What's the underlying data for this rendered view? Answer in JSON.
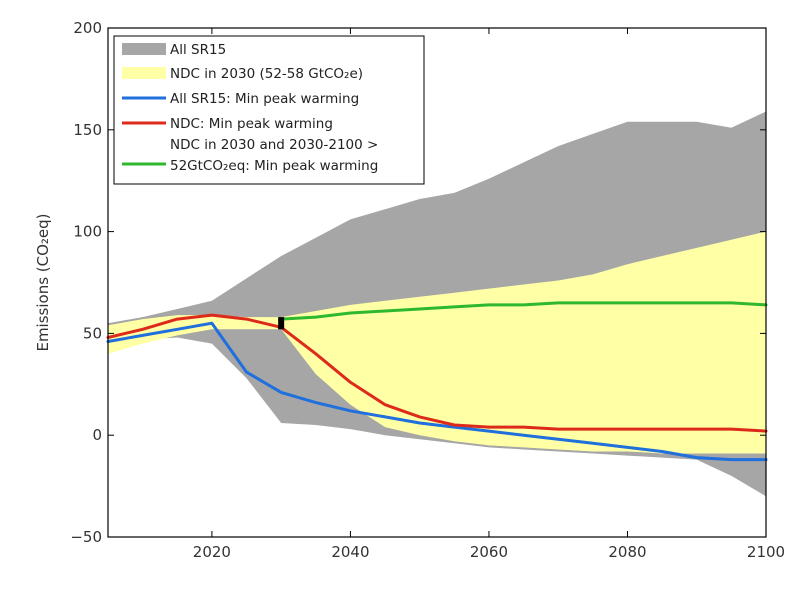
{
  "chart_data": {
    "type": "area",
    "title": "",
    "xlabel": "",
    "ylabel": "Emissions (CO₂eq)",
    "xlim": [
      2005,
      2100
    ],
    "ylim": [
      -50,
      200
    ],
    "xticks": [
      2020,
      2040,
      2060,
      2080,
      2100
    ],
    "yticks": [
      -50,
      0,
      50,
      100,
      150,
      200
    ],
    "xtick_labels": [
      "2020",
      "2040",
      "2060",
      "2080",
      "2100"
    ],
    "ytick_labels": [
      "−50",
      "0",
      "50",
      "100",
      "150",
      "200"
    ],
    "grid": false,
    "legend_position": "top-left",
    "bands": [
      {
        "name": "All SR15",
        "legend_label": "All SR15",
        "color": "#a6a6a6",
        "x": [
          2005,
          2010,
          2015,
          2020,
          2025,
          2030,
          2035,
          2040,
          2045,
          2050,
          2055,
          2060,
          2065,
          2070,
          2075,
          2080,
          2085,
          2090,
          2095,
          2100
        ],
        "upper": [
          55,
          58,
          62,
          66,
          77,
          88,
          97,
          106,
          111,
          116,
          119,
          126,
          134,
          142,
          148,
          154,
          154,
          154,
          151,
          159
        ],
        "lower": [
          45,
          47,
          48,
          45,
          28,
          6,
          5,
          3,
          0,
          -2,
          -4,
          -6,
          -7,
          -8,
          -9,
          -10,
          -11,
          -12,
          -20,
          -30
        ]
      },
      {
        "name": "NDC in 2030",
        "legend_label": "NDC in 2030 (52-58 GtCO₂e)",
        "color": "#ffffa6",
        "x": [
          2005,
          2010,
          2015,
          2020,
          2025,
          2030,
          2035,
          2040,
          2045,
          2050,
          2055,
          2060,
          2065,
          2070,
          2075,
          2080,
          2085,
          2090,
          2095,
          2100
        ],
        "upper": [
          54,
          57,
          59,
          59,
          58,
          58,
          61,
          64,
          66,
          68,
          70,
          72,
          74,
          76,
          79,
          84,
          88,
          92,
          96,
          100
        ],
        "lower": [
          40,
          45,
          49,
          52,
          52,
          52,
          30,
          15,
          4,
          0,
          -3,
          -5,
          -6,
          -7,
          -8,
          -8,
          -9,
          -9,
          -9,
          -9
        ]
      }
    ],
    "series": [
      {
        "name": "All SR15: Min peak warming",
        "legend_label": "All SR15: Min peak warming",
        "color": "#1f6fdc",
        "x": [
          2005,
          2010,
          2015,
          2020,
          2025,
          2030,
          2035,
          2040,
          2045,
          2050,
          2055,
          2060,
          2065,
          2070,
          2075,
          2080,
          2085,
          2090,
          2095,
          2100
        ],
        "y": [
          46,
          49,
          52,
          55,
          31,
          21,
          16,
          12,
          9,
          6,
          4,
          2,
          0,
          -2,
          -4,
          -6,
          -8,
          -11,
          -12,
          -12
        ]
      },
      {
        "name": "NDC: Min peak warming",
        "legend_label": "NDC: Min peak warming",
        "color": "#dd2a1b",
        "x": [
          2005,
          2010,
          2015,
          2020,
          2025,
          2030,
          2035,
          2040,
          2045,
          2050,
          2055,
          2060,
          2065,
          2070,
          2075,
          2080,
          2085,
          2090,
          2095,
          2100
        ],
        "y": [
          48,
          52,
          57,
          59,
          57,
          53,
          40,
          26,
          15,
          9,
          5,
          4,
          4,
          3,
          3,
          3,
          3,
          3,
          3,
          2
        ]
      },
      {
        "name": "NDC in 2030 and 2030-2100 > 52GtCO2eq: Min peak warming",
        "legend_label_line1": "NDC in 2030 and 2030-2100 >",
        "legend_label_line2": "52GtCO₂eq: Min peak warming",
        "color": "#2db82d",
        "x": [
          2030,
          2035,
          2040,
          2045,
          2050,
          2055,
          2060,
          2065,
          2070,
          2075,
          2080,
          2085,
          2090,
          2095,
          2100
        ],
        "y": [
          57,
          58,
          60,
          61,
          62,
          63,
          64,
          64,
          65,
          65,
          65,
          65,
          65,
          65,
          64
        ]
      }
    ],
    "marker": {
      "name": "NDC 2030 range",
      "x": 2030,
      "y_min": 52,
      "y_max": 58,
      "color": "#000000"
    }
  }
}
